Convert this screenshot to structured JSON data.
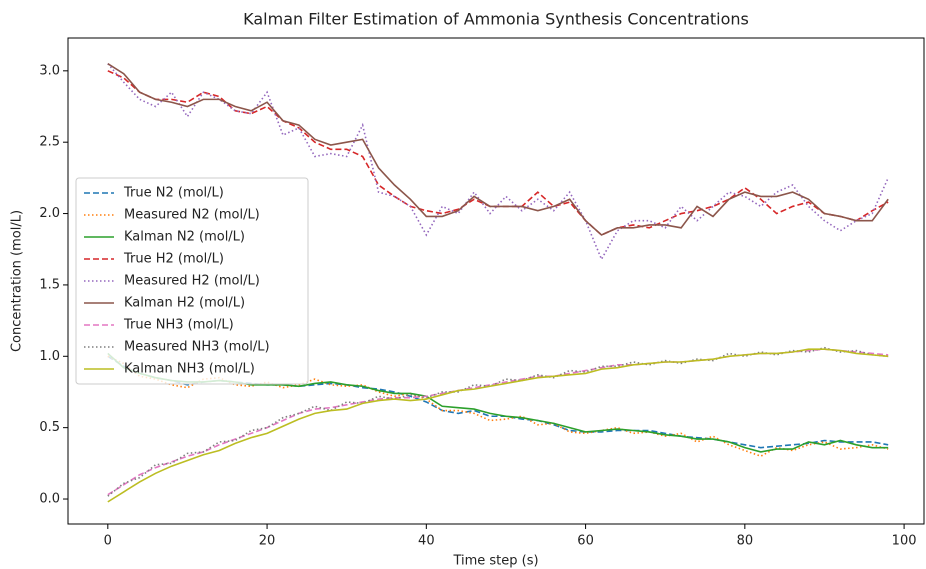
{
  "chart_data": {
    "type": "line",
    "title": "Kalman Filter Estimation of Ammonia Synthesis Concentrations",
    "xlabel": "Time step (s)",
    "ylabel": "Concentration (mol/L)",
    "x": [
      0,
      2,
      4,
      6,
      8,
      10,
      12,
      14,
      16,
      18,
      20,
      22,
      24,
      26,
      28,
      30,
      32,
      34,
      36,
      38,
      40,
      42,
      44,
      46,
      48,
      50,
      52,
      54,
      56,
      58,
      60,
      62,
      64,
      66,
      68,
      70,
      72,
      74,
      76,
      78,
      80,
      82,
      84,
      86,
      88,
      90,
      92,
      94,
      96,
      98
    ],
    "xlim": [
      -5,
      102.5
    ],
    "ylim": [
      -0.175,
      3.23
    ],
    "xticks": [
      0,
      20,
      40,
      60,
      80,
      100
    ],
    "yticks": [
      {
        "value": 0,
        "label": "0.0"
      },
      0.5,
      {
        "value": 1,
        "label": "1.0"
      },
      1.5,
      {
        "value": 2,
        "label": "2.0"
      },
      2.5,
      {
        "value": 3,
        "label": "3.0"
      }
    ],
    "legend": "center left",
    "series": [
      {
        "name": "True N2 (mol/L)",
        "color": "#1f77b4",
        "style": "dashed",
        "values": [
          1.0,
          0.93,
          0.88,
          0.85,
          0.83,
          0.8,
          0.82,
          0.83,
          0.82,
          0.81,
          0.8,
          0.8,
          0.79,
          0.8,
          0.81,
          0.8,
          0.78,
          0.77,
          0.75,
          0.72,
          0.68,
          0.62,
          0.6,
          0.62,
          0.58,
          0.58,
          0.56,
          0.55,
          0.52,
          0.48,
          0.47,
          0.47,
          0.48,
          0.48,
          0.48,
          0.46,
          0.44,
          0.43,
          0.42,
          0.4,
          0.38,
          0.36,
          0.37,
          0.38,
          0.39,
          0.41,
          0.4,
          0.4,
          0.4,
          0.38
        ]
      },
      {
        "name": "Measured N2 (mol/L)",
        "color": "#ff7f0e",
        "style": "dotted",
        "values": [
          1.0,
          0.95,
          0.86,
          0.84,
          0.8,
          0.78,
          0.84,
          0.85,
          0.8,
          0.79,
          0.82,
          0.78,
          0.8,
          0.84,
          0.8,
          0.79,
          0.8,
          0.75,
          0.72,
          0.74,
          0.7,
          0.62,
          0.62,
          0.6,
          0.55,
          0.56,
          0.58,
          0.52,
          0.53,
          0.47,
          0.46,
          0.48,
          0.5,
          0.46,
          0.47,
          0.44,
          0.46,
          0.4,
          0.44,
          0.38,
          0.34,
          0.3,
          0.36,
          0.34,
          0.38,
          0.4,
          0.35,
          0.36,
          0.38,
          0.35
        ]
      },
      {
        "name": "Kalman N2 (mol/L)",
        "color": "#2ca02c",
        "style": "solid",
        "values": [
          1.02,
          0.92,
          0.88,
          0.85,
          0.83,
          0.82,
          0.82,
          0.83,
          0.82,
          0.8,
          0.8,
          0.8,
          0.79,
          0.81,
          0.82,
          0.8,
          0.79,
          0.76,
          0.74,
          0.74,
          0.72,
          0.65,
          0.64,
          0.63,
          0.6,
          0.58,
          0.57,
          0.55,
          0.53,
          0.5,
          0.47,
          0.48,
          0.49,
          0.48,
          0.47,
          0.45,
          0.44,
          0.42,
          0.42,
          0.4,
          0.36,
          0.33,
          0.35,
          0.35,
          0.4,
          0.38,
          0.41,
          0.38,
          0.36,
          0.36
        ]
      },
      {
        "name": "True H2 (mol/L)",
        "color": "#d62728",
        "style": "dashed",
        "values": [
          3.0,
          2.95,
          2.85,
          2.8,
          2.8,
          2.78,
          2.85,
          2.82,
          2.72,
          2.7,
          2.75,
          2.65,
          2.6,
          2.5,
          2.45,
          2.45,
          2.4,
          2.2,
          2.12,
          2.05,
          2.02,
          2.0,
          2.03,
          2.1,
          2.05,
          2.05,
          2.05,
          2.15,
          2.05,
          2.08,
          1.95,
          1.85,
          1.9,
          1.92,
          1.9,
          1.95,
          2.0,
          2.02,
          2.05,
          2.1,
          2.18,
          2.1,
          2.0,
          2.05,
          2.08,
          2.0,
          1.98,
          1.95,
          2.02,
          2.08
        ]
      },
      {
        "name": "Measured H2 (mol/L)",
        "color": "#9467bd",
        "style": "dotted",
        "values": [
          3.05,
          2.92,
          2.8,
          2.75,
          2.85,
          2.68,
          2.85,
          2.8,
          2.72,
          2.7,
          2.85,
          2.55,
          2.6,
          2.4,
          2.42,
          2.4,
          2.62,
          2.15,
          2.12,
          2.05,
          1.85,
          2.05,
          2.0,
          2.15,
          2.0,
          2.12,
          2.02,
          2.1,
          2.02,
          2.15,
          1.95,
          1.68,
          1.88,
          1.95,
          1.95,
          1.9,
          2.05,
          1.95,
          2.05,
          2.15,
          2.12,
          2.05,
          2.15,
          2.2,
          2.05,
          1.95,
          1.88,
          1.95,
          2.0,
          2.25
        ]
      },
      {
        "name": "Kalman H2 (mol/L)",
        "color": "#8c564b",
        "style": "solid",
        "values": [
          3.05,
          2.98,
          2.85,
          2.8,
          2.78,
          2.75,
          2.8,
          2.8,
          2.75,
          2.72,
          2.78,
          2.65,
          2.62,
          2.52,
          2.48,
          2.5,
          2.52,
          2.32,
          2.2,
          2.1,
          1.98,
          1.98,
          2.02,
          2.12,
          2.05,
          2.05,
          2.05,
          2.02,
          2.05,
          2.1,
          1.95,
          1.85,
          1.9,
          1.9,
          1.92,
          1.92,
          1.9,
          2.05,
          1.98,
          2.1,
          2.15,
          2.12,
          2.12,
          2.15,
          2.1,
          2.0,
          1.98,
          1.95,
          1.95,
          2.1
        ]
      },
      {
        "name": "True NH3 (mol/L)",
        "color": "#e377c2",
        "style": "dashed",
        "values": [
          0.03,
          0.1,
          0.17,
          0.22,
          0.26,
          0.3,
          0.33,
          0.38,
          0.42,
          0.46,
          0.5,
          0.55,
          0.6,
          0.63,
          0.64,
          0.66,
          0.68,
          0.7,
          0.71,
          0.71,
          0.72,
          0.74,
          0.76,
          0.78,
          0.8,
          0.82,
          0.84,
          0.86,
          0.86,
          0.88,
          0.9,
          0.92,
          0.94,
          0.94,
          0.95,
          0.96,
          0.96,
          0.97,
          0.98,
          1.0,
          1.01,
          1.02,
          1.02,
          1.03,
          1.04,
          1.05,
          1.04,
          1.03,
          1.02,
          1.01
        ]
      },
      {
        "name": "Measured NH3 (mol/L)",
        "color": "#7f7f7f",
        "style": "dotted",
        "values": [
          0.02,
          0.11,
          0.15,
          0.24,
          0.25,
          0.32,
          0.33,
          0.4,
          0.41,
          0.48,
          0.5,
          0.57,
          0.6,
          0.65,
          0.62,
          0.68,
          0.67,
          0.72,
          0.7,
          0.73,
          0.71,
          0.75,
          0.75,
          0.8,
          0.79,
          0.84,
          0.83,
          0.87,
          0.85,
          0.9,
          0.89,
          0.93,
          0.93,
          0.96,
          0.94,
          0.97,
          0.95,
          0.98,
          0.97,
          1.02,
          1.0,
          1.03,
          1.01,
          1.04,
          1.03,
          1.06,
          1.03,
          1.04,
          1.01,
          1.0
        ]
      },
      {
        "name": "Kalman NH3 (mol/L)",
        "color": "#bcbd22",
        "style": "solid",
        "values": [
          -0.02,
          0.05,
          0.12,
          0.18,
          0.23,
          0.27,
          0.31,
          0.34,
          0.39,
          0.43,
          0.46,
          0.51,
          0.56,
          0.6,
          0.62,
          0.63,
          0.67,
          0.69,
          0.7,
          0.69,
          0.7,
          0.73,
          0.76,
          0.77,
          0.79,
          0.81,
          0.83,
          0.85,
          0.86,
          0.87,
          0.88,
          0.91,
          0.92,
          0.94,
          0.95,
          0.96,
          0.96,
          0.97,
          0.98,
          1.0,
          1.01,
          1.02,
          1.02,
          1.03,
          1.05,
          1.05,
          1.04,
          1.02,
          1.01,
          1.0
        ]
      }
    ]
  }
}
